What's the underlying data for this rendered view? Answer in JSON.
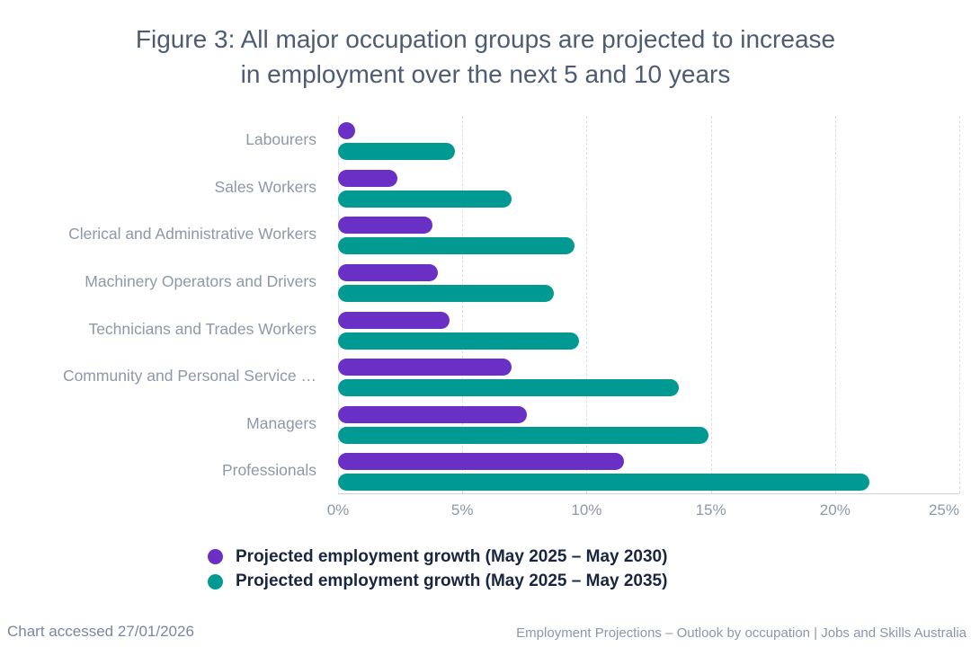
{
  "title": {
    "line1": "Figure 3: All major occupation groups are projected to increase",
    "line2": "in employment over the next 5 and 10 years",
    "full": "Figure 3: All major occupation groups are projected to increase in employment over the next 5 and 10 years"
  },
  "chart_data": {
    "type": "bar",
    "orientation": "horizontal",
    "title": "Figure 3: All major occupation groups are projected to increase in employment over the next 5 and 10 years",
    "categories": [
      "Labourers",
      "Sales Workers",
      "Clerical and Administrative Workers",
      "Machinery Operators and Drivers",
      "Technicians and Trades Workers",
      "Community and Personal Service …",
      "Managers",
      "Professionals"
    ],
    "series": [
      {
        "name": "Projected employment growth (May 2025 – May 2030)",
        "color": "#6a2fc4",
        "values": [
          0.7,
          2.4,
          3.8,
          4.0,
          4.5,
          7.0,
          7.6,
          11.5
        ]
      },
      {
        "name": "Projected employment growth (May 2025 – May 2035)",
        "color": "#009a93",
        "values": [
          4.7,
          7.0,
          9.5,
          8.7,
          9.7,
          13.7,
          14.9,
          21.4
        ]
      }
    ],
    "xlabel": "",
    "ylabel": "",
    "xlim": [
      0,
      25
    ],
    "x_tick_values": [
      0,
      5,
      10,
      15,
      20,
      25
    ],
    "x_tick_labels": [
      "0%",
      "5%",
      "10%",
      "15%",
      "20%",
      "25%"
    ],
    "grid": "dashed-vertical",
    "legend_position": "bottom-left"
  },
  "footer": {
    "left": "Chart accessed 27/01/2026",
    "right": "Employment Projections – Outlook by occupation | Jobs and Skills Australia"
  },
  "colors": {
    "title_text": "#4d5c73",
    "axis_text": "#8d98a8",
    "legend_text": "#19263f",
    "gridline": "#d9dee4",
    "axis_line": "#ccd4dc",
    "series_2030": "#6a2fc4",
    "series_2035": "#009a93"
  }
}
